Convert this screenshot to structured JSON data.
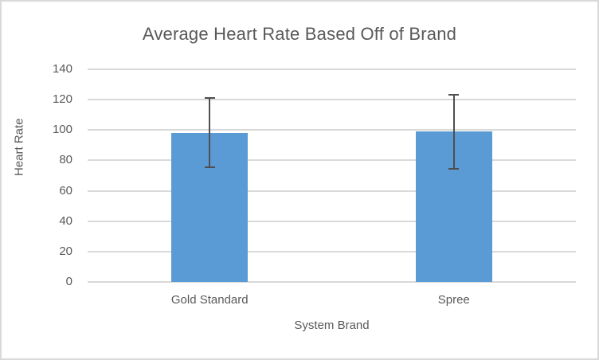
{
  "colors": {
    "bar_fill": "#5b9bd5",
    "error_bar": "#4f4f4f",
    "gridline": "#d9d9d9",
    "text": "#595959",
    "frame_border": "#d9d9d9",
    "background": "#ffffff"
  },
  "chart_data": {
    "type": "bar",
    "title": "Average Heart Rate Based Off of Brand",
    "xlabel": "System Brand",
    "ylabel": "Heart Rate",
    "categories": [
      "Gold Standard",
      "Spree"
    ],
    "series": [
      {
        "name": "Average Heart Rate",
        "values": [
          98,
          99
        ],
        "error_bars": [
          {
            "low": 75,
            "high": 121.5
          },
          {
            "low": 74,
            "high": 124
          }
        ]
      }
    ],
    "ylim": [
      0,
      140
    ],
    "yticks": [
      0,
      20,
      40,
      60,
      80,
      100,
      120,
      140
    ],
    "grid": true,
    "legend": false
  }
}
